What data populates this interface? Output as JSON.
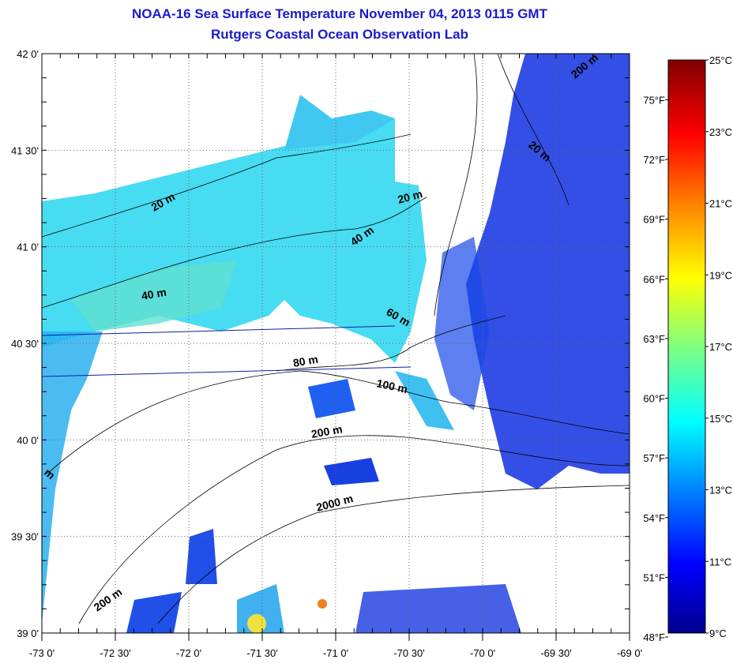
{
  "title": {
    "line1": "NOAA-16 Sea Surface Temperature November 04, 2013 0115 GMT",
    "line2": "Rutgers Coastal Ocean Observation Lab"
  },
  "map": {
    "lat_labels": [
      "42 0'",
      "41 30'",
      "41 0'",
      "40 30'",
      "40 0'",
      "39 30'",
      "39 0'"
    ],
    "lon_labels": [
      "-73 0'",
      "-72 30'",
      "-72 0'",
      "-71 30'",
      "-71 0'",
      "-70 30'",
      "-70 0'",
      "-69 30'",
      "-69 0'"
    ],
    "contour_labels": [
      "20 m",
      "40 m",
      "40 m",
      "60 m",
      "80 m",
      "100 m",
      "200 m",
      "2000 m",
      "200 m",
      "200 m",
      "20 m",
      "20 m",
      "m"
    ]
  },
  "colorbar": {
    "celsius_labels": [
      "25°C",
      "23°C",
      "21°C",
      "19°C",
      "17°C",
      "15°C",
      "13°C",
      "11°C",
      "9°C"
    ],
    "fahrenheit_labels": [
      "75°F",
      "72°F",
      "69°F",
      "66°F",
      "63°F",
      "60°F",
      "57°F",
      "54°F",
      "51°F",
      "48°F"
    ],
    "range_c": [
      9,
      25
    ],
    "colors": [
      "#00008f",
      "#0000ff",
      "#0080ff",
      "#00ffff",
      "#80ff80",
      "#ffff00",
      "#ff8000",
      "#ff0000",
      "#800000"
    ]
  }
}
